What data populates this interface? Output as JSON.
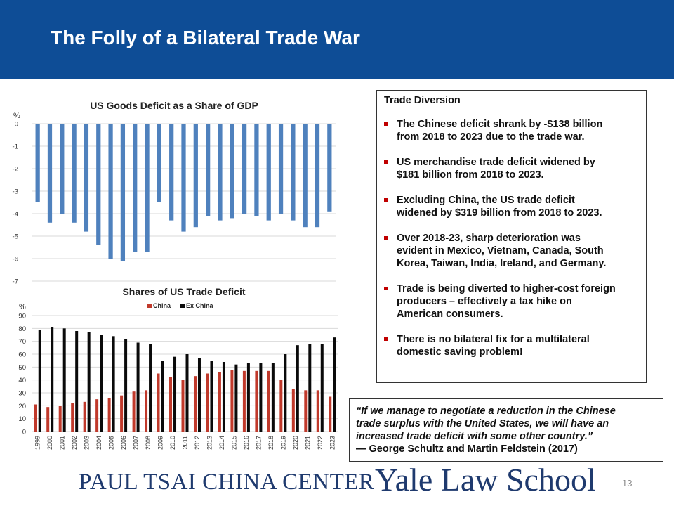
{
  "slide": {
    "title": "The Folly of a Bilateral Trade War",
    "page_number": "13"
  },
  "trade_diversion": {
    "heading": "Trade Diversion",
    "bullets": [
      [
        "The Chinese deficit shrank by -$138 billion",
        "from 2018 to 2023 due to the trade war."
      ],
      [
        "US merchandise trade deficit widened by",
        "$181 billion from 2018 to 2023."
      ],
      [
        "Excluding China, the US trade deficit",
        "widened by $319 billion from 2018 to 2023."
      ],
      [
        "Over 2018-23, sharp deterioration was",
        "evident in Mexico, Vietnam, Canada, South",
        "Korea, Taiwan, India, Ireland, and Germany."
      ],
      [
        "Trade is being diverted to higher-cost foreign",
        "producers – effectively a tax hike on",
        "American consumers."
      ],
      [
        "There is no bilateral fix for a multilateral",
        "domestic saving problem!"
      ]
    ]
  },
  "quote": {
    "lines": [
      "“If we manage to negotiate a reduction in the Chinese",
      "trade surplus with the United States, we will have an",
      "increased trade deficit with some other country.”"
    ],
    "attribution": "— George Schultz and Martin Feldstein (2017)"
  },
  "footer": {
    "center_name": "PAUL TSAI CHINA CENTER",
    "school_name": "Yale Law School"
  },
  "colors": {
    "header_bg": "#0e4d96",
    "bar_blue": "#4f81bd",
    "china_red": "#c0392b",
    "exchina_black": "#0a0a0a",
    "bullet_red": "#c00000",
    "footer_navy": "#1f3a6e"
  },
  "chart_data": [
    {
      "type": "bar",
      "title": "US Goods Deficit as a Share of GDP",
      "ylabel": "%",
      "xlabel": "",
      "categories": [
        "1999",
        "2000",
        "2001",
        "2002",
        "2003",
        "2004",
        "2005",
        "2006",
        "2007",
        "2008",
        "2009",
        "2010",
        "2011",
        "2012",
        "2013",
        "2014",
        "2015",
        "2016",
        "2017",
        "2018",
        "2019",
        "2020",
        "2021",
        "2022",
        "2023"
      ],
      "values": [
        -3.5,
        -4.4,
        -4.0,
        -4.4,
        -4.8,
        -5.4,
        -6.0,
        -6.1,
        -5.7,
        -5.7,
        -3.5,
        -4.3,
        -4.8,
        -4.6,
        -4.1,
        -4.3,
        -4.2,
        -4.0,
        -4.1,
        -4.3,
        -4.0,
        -4.3,
        -4.6,
        -4.6,
        -3.9
      ],
      "ylim": [
        -7,
        0
      ],
      "yticks": [
        0,
        -1,
        -2,
        -3,
        -4,
        -5,
        -6,
        -7
      ],
      "grid": true,
      "show_category_labels": false
    },
    {
      "type": "bar",
      "title": "Shares of US Trade Deficit",
      "ylabel": "%",
      "xlabel": "",
      "categories": [
        "1999",
        "2000",
        "2001",
        "2002",
        "2003",
        "2004",
        "2005",
        "2006",
        "2007",
        "2008",
        "2009",
        "2010",
        "2011",
        "2012",
        "2013",
        "2014",
        "2015",
        "2016",
        "2017",
        "2018",
        "2019",
        "2020",
        "2021",
        "2022",
        "2023"
      ],
      "series": [
        {
          "name": "China",
          "values": [
            21,
            19,
            20,
            22,
            23,
            25,
            26,
            28,
            31,
            32,
            45,
            42,
            40,
            43,
            45,
            46,
            48,
            47,
            47,
            47,
            40,
            33,
            32,
            32,
            27
          ]
        },
        {
          "name": "Ex China",
          "values": [
            79,
            81,
            80,
            78,
            77,
            75,
            74,
            72,
            69,
            68,
            55,
            58,
            60,
            57,
            55,
            54,
            52,
            53,
            53,
            53,
            60,
            67,
            68,
            68,
            73
          ]
        }
      ],
      "ylim": [
        0,
        90
      ],
      "yticks": [
        0,
        10,
        20,
        30,
        40,
        50,
        60,
        70,
        80,
        90
      ],
      "grid": true,
      "legend": "top-center"
    }
  ]
}
